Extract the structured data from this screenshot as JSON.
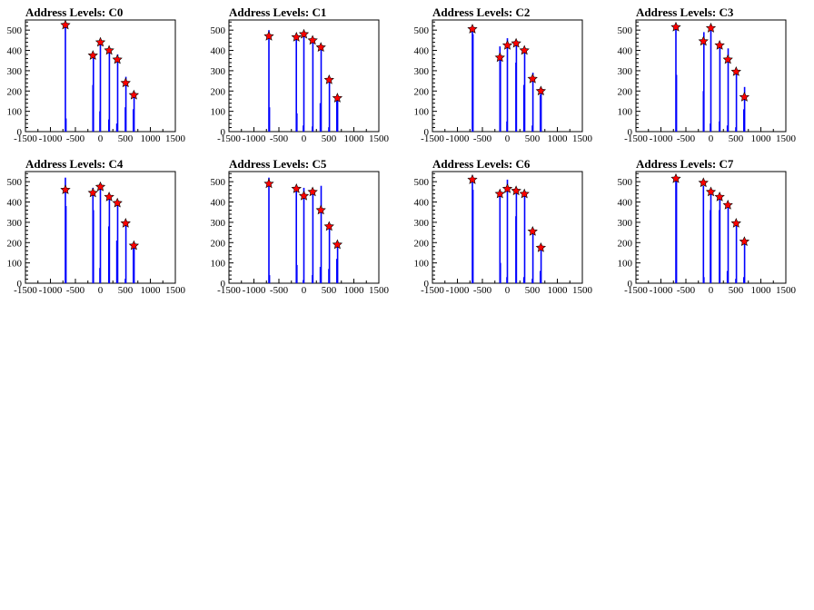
{
  "colors": {
    "background": "#ffffff",
    "axis": "#000000",
    "bars": "#0000ff",
    "markers": "#ff0000",
    "marker_outline": "#000000"
  },
  "chart_data": [
    {
      "type": "bar",
      "title": "Address Levels: C0",
      "xlim": [
        -1500,
        1500
      ],
      "ylim": [
        0,
        550
      ],
      "x_ticks": [
        -1500,
        -1000,
        -500,
        0,
        500,
        1000,
        1500
      ],
      "y_ticks": [
        0,
        100,
        200,
        300,
        400,
        500
      ],
      "grid": false,
      "bars": [
        [
          -700,
          530
        ],
        [
          -690,
          65
        ],
        [
          -150,
          230
        ],
        [
          -140,
          370
        ],
        [
          -10,
          100
        ],
        [
          0,
          440
        ],
        [
          170,
          60
        ],
        [
          180,
          400
        ],
        [
          330,
          40
        ],
        [
          345,
          380
        ],
        [
          500,
          120
        ],
        [
          510,
          270
        ],
        [
          660,
          110
        ],
        [
          675,
          195
        ]
      ],
      "peaks": [
        [
          -700,
          525
        ],
        [
          -150,
          375
        ],
        [
          0,
          440
        ],
        [
          175,
          400
        ],
        [
          340,
          355
        ],
        [
          505,
          240
        ],
        [
          670,
          180
        ]
      ]
    },
    {
      "type": "bar",
      "title": "Address Levels: C1",
      "xlim": [
        -1500,
        1500
      ],
      "ylim": [
        0,
        550
      ],
      "x_ticks": [
        -1500,
        -1000,
        -500,
        0,
        500,
        1000,
        1500
      ],
      "y_ticks": [
        0,
        100,
        200,
        300,
        400,
        500
      ],
      "grid": false,
      "bars": [
        [
          -700,
          500
        ],
        [
          -690,
          120
        ],
        [
          -150,
          470
        ],
        [
          -140,
          90
        ],
        [
          -10,
          30
        ],
        [
          0,
          490
        ],
        [
          170,
          25
        ],
        [
          180,
          460
        ],
        [
          330,
          140
        ],
        [
          345,
          410
        ],
        [
          500,
          20
        ],
        [
          510,
          260
        ],
        [
          660,
          150
        ],
        [
          675,
          175
        ]
      ],
      "peaks": [
        [
          -700,
          470
        ],
        [
          -150,
          465
        ],
        [
          0,
          480
        ],
        [
          175,
          450
        ],
        [
          340,
          415
        ],
        [
          505,
          255
        ],
        [
          670,
          165
        ]
      ]
    },
    {
      "type": "bar",
      "title": "Address Levels: C2",
      "xlim": [
        -1500,
        1500
      ],
      "ylim": [
        0,
        550
      ],
      "x_ticks": [
        -1500,
        -1000,
        -500,
        0,
        500,
        1000,
        1500
      ],
      "y_ticks": [
        0,
        100,
        200,
        300,
        400,
        500
      ],
      "grid": false,
      "bars": [
        [
          -700,
          520
        ],
        [
          -690,
          480
        ],
        [
          -150,
          420
        ],
        [
          -140,
          380
        ],
        [
          -10,
          50
        ],
        [
          0,
          460
        ],
        [
          170,
          340
        ],
        [
          180,
          450
        ],
        [
          330,
          230
        ],
        [
          345,
          410
        ],
        [
          500,
          30
        ],
        [
          510,
          290
        ],
        [
          660,
          180
        ],
        [
          675,
          210
        ]
      ],
      "peaks": [
        [
          -700,
          505
        ],
        [
          -150,
          365
        ],
        [
          0,
          425
        ],
        [
          175,
          435
        ],
        [
          340,
          400
        ],
        [
          505,
          260
        ],
        [
          670,
          200
        ]
      ]
    },
    {
      "type": "bar",
      "title": "Address Levels: C3",
      "xlim": [
        -1500,
        1500
      ],
      "ylim": [
        0,
        550
      ],
      "x_ticks": [
        -1500,
        -1000,
        -500,
        0,
        500,
        1000,
        1500
      ],
      "y_ticks": [
        0,
        100,
        200,
        300,
        400,
        500
      ],
      "grid": false,
      "bars": [
        [
          -700,
          530
        ],
        [
          -690,
          280
        ],
        [
          -150,
          200
        ],
        [
          -140,
          490
        ],
        [
          -10,
          40
        ],
        [
          0,
          520
        ],
        [
          170,
          50
        ],
        [
          180,
          430
        ],
        [
          330,
          30
        ],
        [
          345,
          410
        ],
        [
          500,
          20
        ],
        [
          510,
          310
        ],
        [
          660,
          110
        ],
        [
          675,
          220
        ]
      ],
      "peaks": [
        [
          -700,
          515
        ],
        [
          -150,
          445
        ],
        [
          0,
          510
        ],
        [
          175,
          425
        ],
        [
          340,
          355
        ],
        [
          505,
          295
        ],
        [
          670,
          170
        ]
      ]
    },
    {
      "type": "bar",
      "title": "Address Levels: C4",
      "xlim": [
        -1500,
        1500
      ],
      "ylim": [
        0,
        550
      ],
      "x_ticks": [
        -1500,
        -1000,
        -500,
        0,
        500,
        1000,
        1500
      ],
      "y_ticks": [
        0,
        100,
        200,
        300,
        400,
        500
      ],
      "grid": false,
      "bars": [
        [
          -700,
          520
        ],
        [
          -690,
          380
        ],
        [
          -150,
          470
        ],
        [
          -140,
          360
        ],
        [
          -10,
          75
        ],
        [
          0,
          490
        ],
        [
          170,
          280
        ],
        [
          180,
          440
        ],
        [
          330,
          210
        ],
        [
          345,
          390
        ],
        [
          500,
          20
        ],
        [
          510,
          300
        ],
        [
          660,
          170
        ],
        [
          675,
          200
        ]
      ],
      "peaks": [
        [
          -700,
          460
        ],
        [
          -150,
          445
        ],
        [
          0,
          475
        ],
        [
          175,
          425
        ],
        [
          340,
          395
        ],
        [
          505,
          295
        ],
        [
          670,
          185
        ]
      ]
    },
    {
      "type": "bar",
      "title": "Address Levels: C5",
      "xlim": [
        -1500,
        1500
      ],
      "ylim": [
        0,
        550
      ],
      "x_ticks": [
        -1500,
        -1000,
        -500,
        0,
        500,
        1000,
        1500
      ],
      "y_ticks": [
        0,
        100,
        200,
        300,
        400,
        500
      ],
      "grid": false,
      "bars": [
        [
          -700,
          520
        ],
        [
          -690,
          40
        ],
        [
          -150,
          470
        ],
        [
          -140,
          90
        ],
        [
          -10,
          15
        ],
        [
          0,
          470
        ],
        [
          170,
          40
        ],
        [
          180,
          460
        ],
        [
          330,
          80
        ],
        [
          345,
          480
        ],
        [
          500,
          70
        ],
        [
          510,
          290
        ],
        [
          660,
          120
        ],
        [
          675,
          200
        ]
      ],
      "peaks": [
        [
          -700,
          490
        ],
        [
          -150,
          465
        ],
        [
          0,
          430
        ],
        [
          175,
          450
        ],
        [
          340,
          360
        ],
        [
          505,
          280
        ],
        [
          670,
          190
        ]
      ]
    },
    {
      "type": "bar",
      "title": "Address Levels: C6",
      "xlim": [
        -1500,
        1500
      ],
      "ylim": [
        0,
        550
      ],
      "x_ticks": [
        -1500,
        -1000,
        -500,
        0,
        500,
        1000,
        1500
      ],
      "y_ticks": [
        0,
        100,
        200,
        300,
        400,
        500
      ],
      "grid": false,
      "bars": [
        [
          -700,
          530
        ],
        [
          -690,
          460
        ],
        [
          -150,
          440
        ],
        [
          -140,
          100
        ],
        [
          -10,
          30
        ],
        [
          0,
          510
        ],
        [
          170,
          330
        ],
        [
          180,
          470
        ],
        [
          330,
          30
        ],
        [
          345,
          450
        ],
        [
          500,
          20
        ],
        [
          510,
          270
        ],
        [
          660,
          60
        ],
        [
          675,
          190
        ]
      ],
      "peaks": [
        [
          -700,
          510
        ],
        [
          -150,
          440
        ],
        [
          0,
          465
        ],
        [
          175,
          455
        ],
        [
          340,
          440
        ],
        [
          505,
          255
        ],
        [
          670,
          175
        ]
      ]
    },
    {
      "type": "bar",
      "title": "Address Levels: C7",
      "xlim": [
        -1500,
        1500
      ],
      "ylim": [
        0,
        550
      ],
      "x_ticks": [
        -1500,
        -1000,
        -500,
        0,
        500,
        1000,
        1500
      ],
      "y_ticks": [
        0,
        100,
        200,
        300,
        400,
        500
      ],
      "grid": false,
      "bars": [
        [
          -700,
          530
        ],
        [
          -690,
          500
        ],
        [
          -150,
          480
        ],
        [
          -140,
          30
        ],
        [
          -10,
          360
        ],
        [
          0,
          450
        ],
        [
          170,
          360
        ],
        [
          180,
          420
        ],
        [
          330,
          60
        ],
        [
          345,
          380
        ],
        [
          500,
          20
        ],
        [
          510,
          310
        ],
        [
          660,
          30
        ],
        [
          675,
          220
        ]
      ],
      "peaks": [
        [
          -700,
          515
        ],
        [
          -150,
          495
        ],
        [
          0,
          450
        ],
        [
          175,
          425
        ],
        [
          340,
          385
        ],
        [
          505,
          295
        ],
        [
          670,
          205
        ]
      ]
    }
  ]
}
